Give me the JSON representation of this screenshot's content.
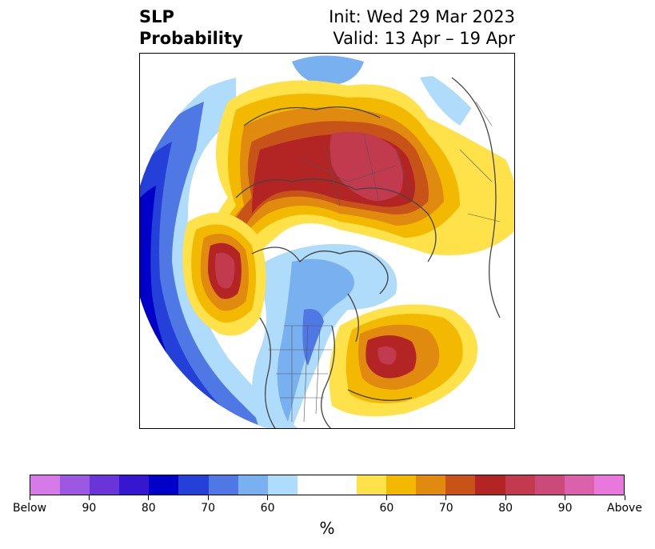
{
  "title": {
    "left_line1": "SLP",
    "left_line2": "Probability",
    "right_line1": "Init: Wed 29 Mar 2023",
    "right_line2": "Valid: 13 Apr – 19 Apr"
  },
  "colorbar": {
    "unit": "%",
    "colors": [
      "#d67ae8",
      "#9c58e0",
      "#6a35d8",
      "#3617cf",
      "#0000c8",
      "#2440d8",
      "#4f78e4",
      "#78b0f0",
      "#aedcfa",
      "#ffffff",
      "#ffffff",
      "#ffe24a",
      "#f3b800",
      "#e08a10",
      "#c85318",
      "#b32424",
      "#c23a4e",
      "#cc4a7a",
      "#db62aa",
      "#e878dc"
    ],
    "tick_labels": [
      "Below",
      "90",
      "80",
      "70",
      "60",
      "60",
      "70",
      "80",
      "90",
      "Above"
    ]
  },
  "map": {
    "projection": "north-polar-stereographic",
    "field": "SLP probability tercile"
  }
}
